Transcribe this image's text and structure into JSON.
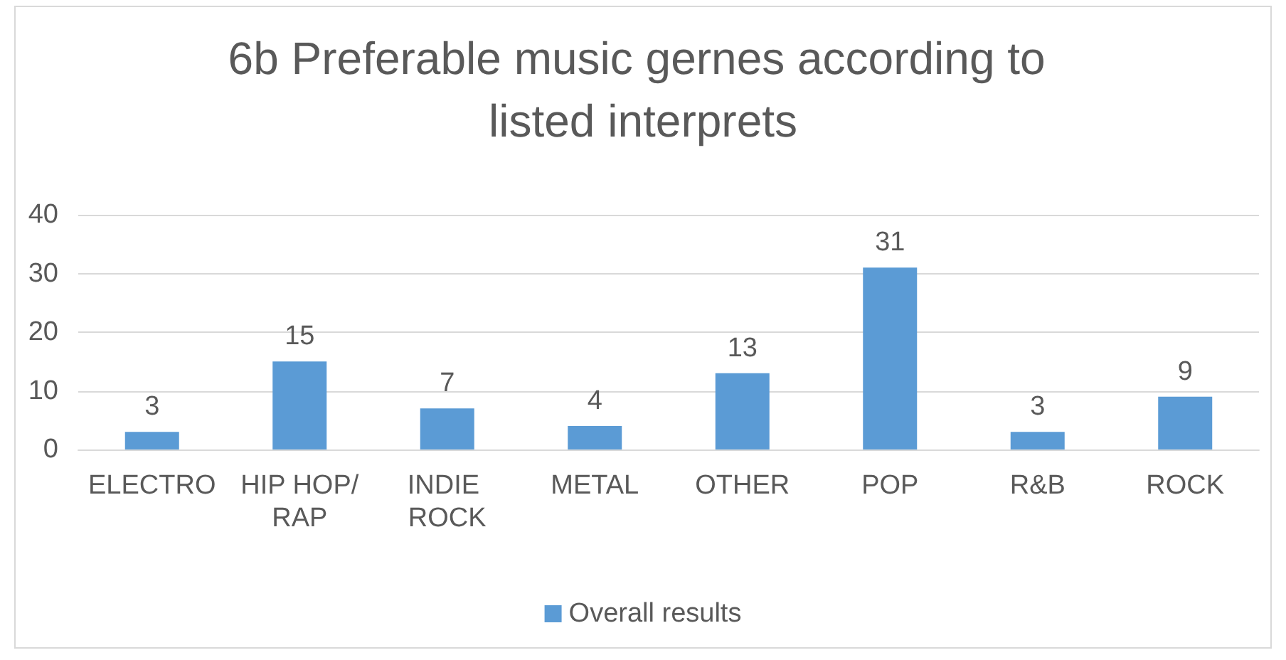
{
  "chart_data": {
    "type": "bar",
    "title": "6b Preferable music gernes according to listed interprets",
    "categories": [
      "ELECTRO",
      "HIP HOP/RAP",
      "INDIE ROCK",
      "METAL",
      "OTHER",
      "POP",
      "R&B",
      "ROCK"
    ],
    "series": [
      {
        "name": "Overall results",
        "color": "#5b9bd5",
        "values": [
          3,
          15,
          7,
          4,
          13,
          31,
          3,
          9
        ]
      }
    ],
    "ylim": [
      0,
      40
    ],
    "yticks": [
      0,
      10,
      20,
      30,
      40
    ],
    "grid": "y",
    "legend": "bottom",
    "data_labels": true
  }
}
